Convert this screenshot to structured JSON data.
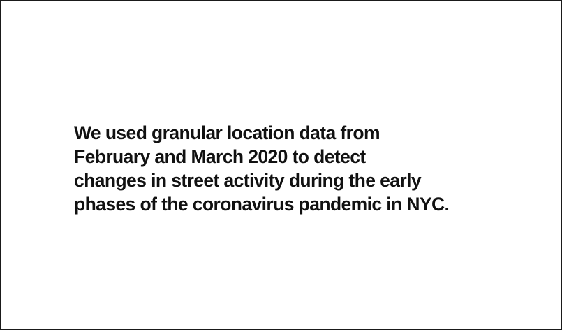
{
  "slide": {
    "statement_lines": [
      "We used granular location data from",
      "February and March 2020 to detect",
      "changes in street activity during the early",
      "phases of the coronavirus pandemic in NYC."
    ]
  },
  "colors": {
    "background": "#ffffff",
    "text": "#111111",
    "border": "#1a1a1a"
  }
}
